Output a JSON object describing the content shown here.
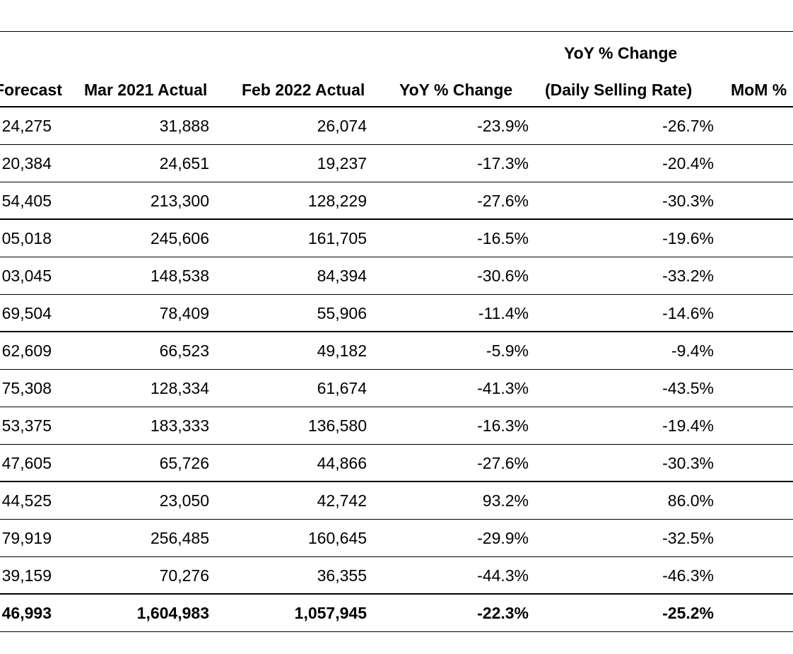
{
  "table": {
    "headers": {
      "forecast": "Forecast",
      "mar_2021_actual": "Mar 2021 Actual",
      "feb_2022_actual": "Feb 2022 Actual",
      "yoy_change": "YoY % Change",
      "yoy_dsr_line1": "YoY % Change",
      "yoy_dsr_line2": "(Daily Selling Rate)",
      "mom_change": "MoM %"
    },
    "rows": [
      {
        "forecast": "24,275",
        "mar_2021_actual": "31,888",
        "feb_2022_actual": "26,074",
        "yoy_change": "-23.9%",
        "yoy_dsr": "-26.7%"
      },
      {
        "forecast": "20,384",
        "mar_2021_actual": "24,651",
        "feb_2022_actual": "19,237",
        "yoy_change": "-17.3%",
        "yoy_dsr": "-20.4%"
      },
      {
        "forecast": "54,405",
        "mar_2021_actual": "213,300",
        "feb_2022_actual": "128,229",
        "yoy_change": "-27.6%",
        "yoy_dsr": "-30.3%"
      },
      {
        "forecast": "05,018",
        "mar_2021_actual": "245,606",
        "feb_2022_actual": "161,705",
        "yoy_change": "-16.5%",
        "yoy_dsr": "-19.6%"
      },
      {
        "forecast": "03,045",
        "mar_2021_actual": "148,538",
        "feb_2022_actual": "84,394",
        "yoy_change": "-30.6%",
        "yoy_dsr": "-33.2%"
      },
      {
        "forecast": "69,504",
        "mar_2021_actual": "78,409",
        "feb_2022_actual": "55,906",
        "yoy_change": "-11.4%",
        "yoy_dsr": "-14.6%"
      },
      {
        "forecast": "62,609",
        "mar_2021_actual": "66,523",
        "feb_2022_actual": "49,182",
        "yoy_change": "-5.9%",
        "yoy_dsr": "-9.4%"
      },
      {
        "forecast": "75,308",
        "mar_2021_actual": "128,334",
        "feb_2022_actual": "61,674",
        "yoy_change": "-41.3%",
        "yoy_dsr": "-43.5%"
      },
      {
        "forecast": "53,375",
        "mar_2021_actual": "183,333",
        "feb_2022_actual": "136,580",
        "yoy_change": "-16.3%",
        "yoy_dsr": "-19.4%"
      },
      {
        "forecast": "47,605",
        "mar_2021_actual": "65,726",
        "feb_2022_actual": "44,866",
        "yoy_change": "-27.6%",
        "yoy_dsr": "-30.3%"
      },
      {
        "forecast": "44,525",
        "mar_2021_actual": "23,050",
        "feb_2022_actual": "42,742",
        "yoy_change": "93.2%",
        "yoy_dsr": "86.0%"
      },
      {
        "forecast": "79,919",
        "mar_2021_actual": "256,485",
        "feb_2022_actual": "160,645",
        "yoy_change": "-29.9%",
        "yoy_dsr": "-32.5%"
      },
      {
        "forecast": "39,159",
        "mar_2021_actual": "70,276",
        "feb_2022_actual": "36,355",
        "yoy_change": "-44.3%",
        "yoy_dsr": "-46.3%"
      }
    ],
    "total": {
      "forecast": "46,993",
      "mar_2021_actual": "1,604,983",
      "feb_2022_actual": "1,057,945",
      "yoy_change": "-22.3%",
      "yoy_dsr": "-25.2%"
    }
  }
}
